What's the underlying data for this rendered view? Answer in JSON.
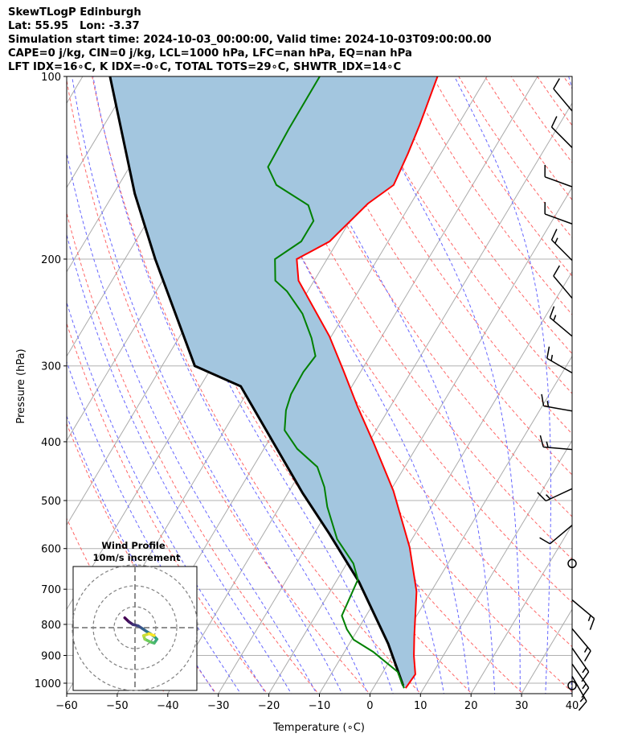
{
  "header": {
    "title": "SkewTLogP Edinburgh",
    "location": "Lat: 55.95   Lon: -3.37",
    "times": "Simulation start time: 2024-10-03_00:00:00, Valid time: 2024-10-03T09:00:00.00",
    "indices1": "CAPE=0 j/kg, CIN=0 j/kg, LCL=1000 hPa, LFC=nan hPa, EQ=nan hPa",
    "indices2": "LFT IDX=16∘C, K IDX=-0∘C, TOTAL TOTS=29∘C, SHWTR_IDX=14∘C"
  },
  "chart_data": {
    "type": "line",
    "title": "SkewTLogP Edinburgh",
    "xlabel": "Temperature (∘C)",
    "ylabel": "Pressure (hPa)",
    "xlim": [
      -60,
      40
    ],
    "ylim": [
      1040,
      100
    ],
    "xticks": [
      -60,
      -50,
      -40,
      -30,
      -20,
      -10,
      0,
      10,
      20,
      30,
      40
    ],
    "yticks": [
      100,
      200,
      300,
      400,
      500,
      600,
      700,
      800,
      900,
      1000
    ],
    "grid": true,
    "colors": {
      "temperature": "#ff0000",
      "dewpoint": "#008000",
      "parcel": "#000000",
      "fill": "#a3c6df",
      "isotherm": "#aaaaaa",
      "dry_adiabat": "#ff6666",
      "moist_adiabat": "#6666ff"
    },
    "temperature": {
      "p": [
        1019,
        967,
        901,
        835,
        706,
        597,
        482,
        401,
        350,
        305,
        268,
        217,
        200,
        187,
        162,
        151,
        134,
        120,
        100
      ],
      "t": [
        6.4,
        6.7,
        4.2,
        1.9,
        -2.9,
        -9.5,
        -19.4,
        -29.1,
        -36.5,
        -43.6,
        -50.4,
        -63.1,
        -66.0,
        -61.6,
        -58.5,
        -55.6,
        -56.5,
        -57.6,
        -59.8
      ]
    },
    "dewpoint": {
      "p": [
        1019,
        958,
        888,
        848,
        815,
        774,
        675,
        635,
        579,
        512,
        475,
        440,
        411,
        383,
        355,
        334,
        307,
        289,
        270,
        246,
        226,
        217,
        200,
        187,
        173,
        163,
        151,
        141,
        122,
        100
      ],
      "t": [
        6.1,
        2.9,
        -4.3,
        -9.6,
        -12.2,
        -14.8,
        -15.9,
        -18.7,
        -24.8,
        -30.6,
        -33.5,
        -37.3,
        -43.4,
        -48.1,
        -50.2,
        -51.1,
        -51.3,
        -50.8,
        -53.7,
        -58.4,
        -64.1,
        -67.7,
        -70.3,
        -67.2,
        -67.2,
        -70.1,
        -78.8,
        -82.6,
        -83.0,
        -83.1
      ]
    },
    "parcel": {
      "p": [
        1009,
        861,
        681,
        567,
        486,
        324,
        300,
        200,
        156,
        100
      ],
      "t": [
        5.6,
        -2.3,
        -15.4,
        -27.0,
        -37.1,
        -62.0,
        -73.5,
        -94.0,
        -105.8,
        -124.6
      ]
    },
    "wind_barbs": [
      {
        "p": 114,
        "dir": 320,
        "spd": 10
      },
      {
        "p": 131,
        "dir": 315,
        "spd": 10
      },
      {
        "p": 152,
        "dir": 290,
        "spd": 10
      },
      {
        "p": 175,
        "dir": 290,
        "spd": 10
      },
      {
        "p": 201,
        "dir": 315,
        "spd": 15
      },
      {
        "p": 232,
        "dir": 320,
        "spd": 10
      },
      {
        "p": 268,
        "dir": 310,
        "spd": 15
      },
      {
        "p": 308,
        "dir": 300,
        "spd": 15
      },
      {
        "p": 356,
        "dir": 280,
        "spd": 15
      },
      {
        "p": 412,
        "dir": 275,
        "spd": 15
      },
      {
        "p": 478,
        "dir": 245,
        "spd": 15
      },
      {
        "p": 549,
        "dir": 230,
        "spd": 10
      },
      {
        "p": 635,
        "dir": 0,
        "spd": 0
      },
      {
        "p": 729,
        "dir": 130,
        "spd": 15
      },
      {
        "p": 813,
        "dir": 140,
        "spd": 15
      },
      {
        "p": 875,
        "dir": 145,
        "spd": 15
      },
      {
        "p": 930,
        "dir": 145,
        "spd": 15
      },
      {
        "p": 974,
        "dir": 150,
        "spd": 15
      },
      {
        "p": 1009,
        "dir": 0,
        "spd": 0
      }
    ],
    "hodograph": {
      "title": "Wind Profile",
      "subtitle": "10m/s increment",
      "rings_ms": [
        10,
        20,
        30
      ],
      "u": [
        -4.9,
        -2.9,
        -1.0,
        1.5,
        3.5,
        5.4,
        7.3,
        9.2,
        10.5,
        9.2,
        7.3,
        4.7,
        4.1,
        6.7,
        9.2
      ],
      "v": [
        4.7,
        2.8,
        1.5,
        0.9,
        -0.4,
        -1.7,
        -2.9,
        -4.2,
        -5.5,
        -7.4,
        -6.8,
        -5.5,
        -3.8,
        -2.9,
        -3.8
      ]
    }
  }
}
